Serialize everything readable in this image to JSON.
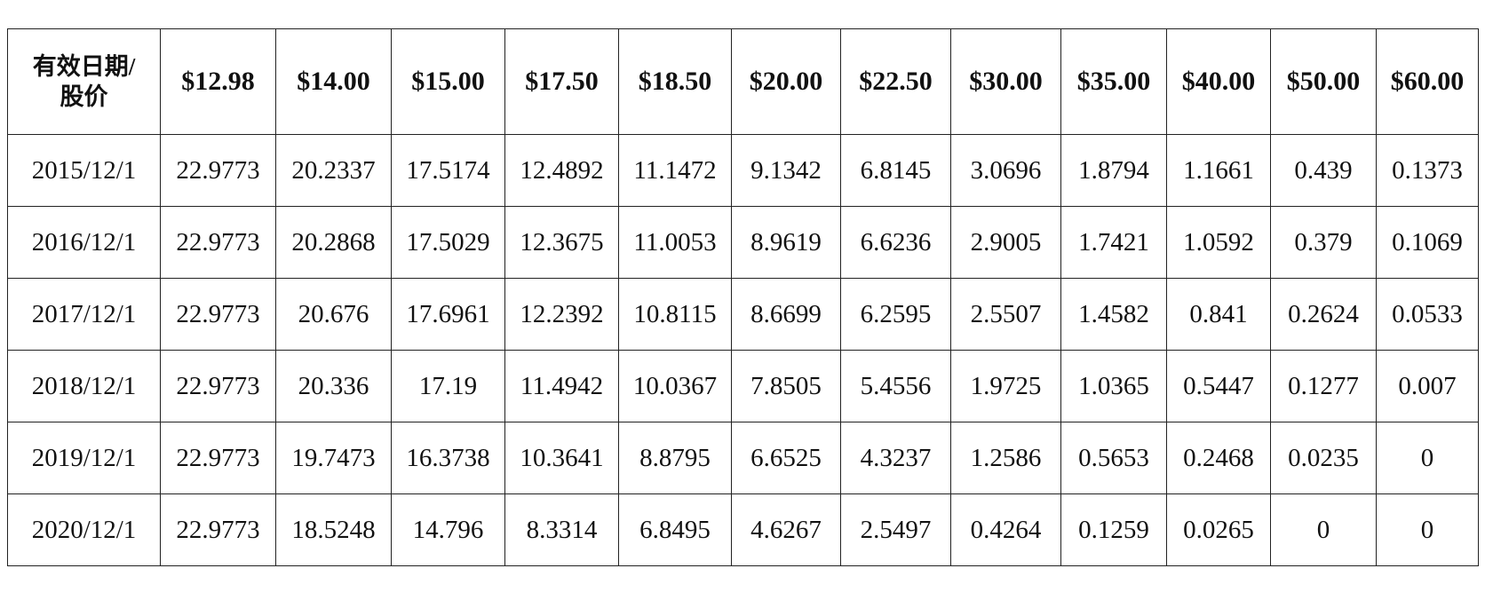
{
  "table": {
    "corner": [
      "有效日期/",
      "股价"
    ],
    "columns": [
      "$12.98",
      "$14.00",
      "$15.00",
      "$17.50",
      "$18.50",
      "$20.00",
      "$22.50",
      "$30.00",
      "$35.00",
      "$40.00",
      "$50.00",
      "$60.00"
    ],
    "rows": [
      [
        "2015/12/1",
        "22.9773",
        "20.2337",
        "17.5174",
        "12.4892",
        "11.1472",
        "9.1342",
        "6.8145",
        "3.0696",
        "1.8794",
        "1.1661",
        "0.439",
        "0.1373"
      ],
      [
        "2016/12/1",
        "22.9773",
        "20.2868",
        "17.5029",
        "12.3675",
        "11.0053",
        "8.9619",
        "6.6236",
        "2.9005",
        "1.7421",
        "1.0592",
        "0.379",
        "0.1069"
      ],
      [
        "2017/12/1",
        "22.9773",
        "20.676",
        "17.6961",
        "12.2392",
        "10.8115",
        "8.6699",
        "6.2595",
        "2.5507",
        "1.4582",
        "0.841",
        "0.2624",
        "0.0533"
      ],
      [
        "2018/12/1",
        "22.9773",
        "20.336",
        "17.19",
        "11.4942",
        "10.0367",
        "7.8505",
        "5.4556",
        "1.9725",
        "1.0365",
        "0.5447",
        "0.1277",
        "0.007"
      ],
      [
        "2019/12/1",
        "22.9773",
        "19.7473",
        "16.3738",
        "10.3641",
        "8.8795",
        "6.6525",
        "4.3237",
        "1.2586",
        "0.5653",
        "0.2468",
        "0.0235",
        "0"
      ],
      [
        "2020/12/1",
        "22.9773",
        "18.5248",
        "14.796",
        "8.3314",
        "6.8495",
        "4.6267",
        "2.5497",
        "0.4264",
        "0.1259",
        "0.0265",
        "0",
        "0"
      ]
    ]
  }
}
